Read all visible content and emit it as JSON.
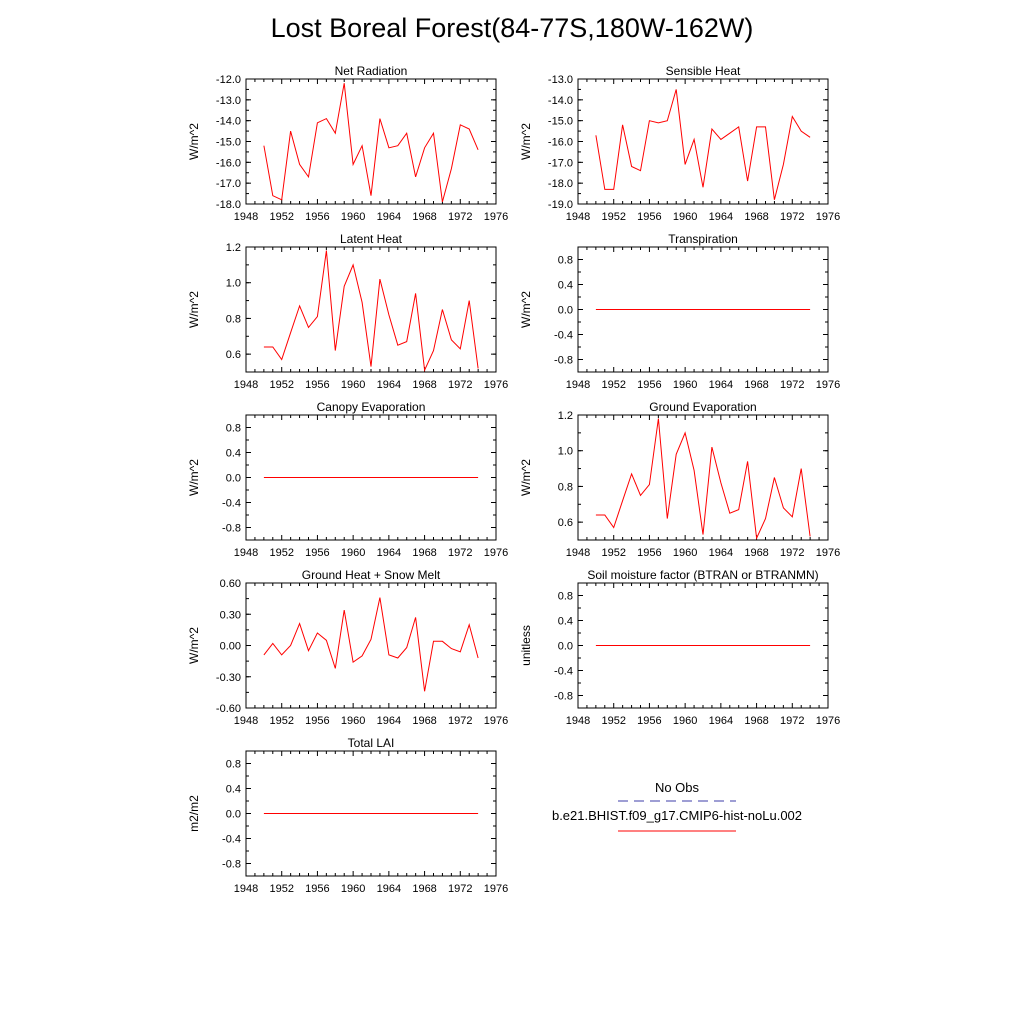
{
  "title": "Lost Boreal Forest(84-77S,180W-162W)",
  "colors": {
    "line": "#ff0000",
    "axis": "#000000",
    "obs": "#3d3da8"
  },
  "x_ticks": [
    "1948",
    "1952",
    "1956",
    "1960",
    "1964",
    "1968",
    "1972",
    "1976"
  ],
  "legend": {
    "obs_label": "No Obs",
    "model_label": "b.e21.BHIST.f09_g17.CMIP6-hist-noLu.002"
  },
  "chart_data": [
    {
      "type": "line",
      "title": "Net Radiation",
      "ylabel": "W/m^2",
      "xlim": [
        1948,
        1976
      ],
      "ylim": [
        -18.0,
        -12.0
      ],
      "yticks": [
        -18.0,
        -17.0,
        -16.0,
        -15.0,
        -14.0,
        -13.0,
        -12.0
      ],
      "ytick_labels": [
        "-18.0",
        "-17.0",
        "-16.0",
        "-15.0",
        "-14.0",
        "-13.0",
        "-12.0"
      ],
      "x": [
        1950,
        1951,
        1952,
        1953,
        1954,
        1955,
        1956,
        1957,
        1958,
        1959,
        1960,
        1961,
        1962,
        1963,
        1964,
        1965,
        1966,
        1967,
        1968,
        1969,
        1970,
        1971,
        1972,
        1973,
        1974
      ],
      "series": [
        {
          "values": [
            -15.2,
            -17.6,
            -17.8,
            -14.5,
            -16.1,
            -16.7,
            -14.1,
            -13.9,
            -14.6,
            -12.2,
            -16.1,
            -15.2,
            -17.6,
            -13.9,
            -15.3,
            -15.2,
            -14.6,
            -16.7,
            -15.3,
            -14.6,
            -17.9,
            -16.3,
            -14.2,
            -14.4,
            -15.4
          ]
        }
      ]
    },
    {
      "type": "line",
      "title": "Sensible Heat",
      "ylabel": "W/m^2",
      "xlim": [
        1948,
        1976
      ],
      "ylim": [
        -19.0,
        -13.0
      ],
      "yticks": [
        -19.0,
        -18.0,
        -17.0,
        -16.0,
        -15.0,
        -14.0,
        -13.0
      ],
      "ytick_labels": [
        "-19.0",
        "-18.0",
        "-17.0",
        "-16.0",
        "-15.0",
        "-14.0",
        "-13.0"
      ],
      "x": [
        1950,
        1951,
        1952,
        1953,
        1954,
        1955,
        1956,
        1957,
        1958,
        1959,
        1960,
        1961,
        1962,
        1963,
        1964,
        1965,
        1966,
        1967,
        1968,
        1969,
        1970,
        1971,
        1972,
        1973,
        1974
      ],
      "series": [
        {
          "values": [
            -15.7,
            -18.3,
            -18.3,
            -15.2,
            -17.2,
            -17.4,
            -15.0,
            -15.1,
            -15.0,
            -13.5,
            -17.1,
            -15.9,
            -18.2,
            -15.4,
            -15.9,
            -15.6,
            -15.3,
            -17.9,
            -15.3,
            -15.3,
            -18.8,
            -17.1,
            -14.8,
            -15.5,
            -15.8
          ]
        }
      ]
    },
    {
      "type": "line",
      "title": "Latent Heat",
      "ylabel": "W/m^2",
      "xlim": [
        1948,
        1976
      ],
      "ylim": [
        0.5,
        1.2
      ],
      "yticks": [
        0.6,
        0.8,
        1.0,
        1.2
      ],
      "ytick_labels": [
        "0.6",
        "0.8",
        "1.0",
        "1.2"
      ],
      "x": [
        1950,
        1951,
        1952,
        1953,
        1954,
        1955,
        1956,
        1957,
        1958,
        1959,
        1960,
        1961,
        1962,
        1963,
        1964,
        1965,
        1966,
        1967,
        1968,
        1969,
        1970,
        1971,
        1972,
        1973,
        1974
      ],
      "series": [
        {
          "values": [
            0.64,
            0.64,
            0.57,
            0.72,
            0.87,
            0.75,
            0.81,
            1.18,
            0.62,
            0.98,
            1.1,
            0.89,
            0.53,
            1.02,
            0.82,
            0.65,
            0.67,
            0.94,
            0.51,
            0.62,
            0.85,
            0.68,
            0.63,
            0.9,
            0.52
          ]
        }
      ]
    },
    {
      "type": "line",
      "title": "Transpiration",
      "ylabel": "W/m^2",
      "xlim": [
        1948,
        1976
      ],
      "ylim": [
        -1.0,
        1.0
      ],
      "yticks": [
        -0.8,
        -0.4,
        0.0,
        0.4,
        0.8
      ],
      "ytick_labels": [
        "-0.8",
        "-0.4",
        "0.0",
        "0.4",
        "0.8"
      ],
      "x": [
        1950,
        1951,
        1952,
        1953,
        1954,
        1955,
        1956,
        1957,
        1958,
        1959,
        1960,
        1961,
        1962,
        1963,
        1964,
        1965,
        1966,
        1967,
        1968,
        1969,
        1970,
        1971,
        1972,
        1973,
        1974
      ],
      "series": [
        {
          "values": [
            0,
            0,
            0,
            0,
            0,
            0,
            0,
            0,
            0,
            0,
            0,
            0,
            0,
            0,
            0,
            0,
            0,
            0,
            0,
            0,
            0,
            0,
            0,
            0,
            0
          ]
        }
      ]
    },
    {
      "type": "line",
      "title": "Canopy Evaporation",
      "ylabel": "W/m^2",
      "xlim": [
        1948,
        1976
      ],
      "ylim": [
        -1.0,
        1.0
      ],
      "yticks": [
        -0.8,
        -0.4,
        0.0,
        0.4,
        0.8
      ],
      "ytick_labels": [
        "-0.8",
        "-0.4",
        "0.0",
        "0.4",
        "0.8"
      ],
      "x": [
        1950,
        1951,
        1952,
        1953,
        1954,
        1955,
        1956,
        1957,
        1958,
        1959,
        1960,
        1961,
        1962,
        1963,
        1964,
        1965,
        1966,
        1967,
        1968,
        1969,
        1970,
        1971,
        1972,
        1973,
        1974
      ],
      "series": [
        {
          "values": [
            0,
            0,
            0,
            0,
            0,
            0,
            0,
            0,
            0,
            0,
            0,
            0,
            0,
            0,
            0,
            0,
            0,
            0,
            0,
            0,
            0,
            0,
            0,
            0,
            0
          ]
        }
      ]
    },
    {
      "type": "line",
      "title": "Ground Evaporation",
      "ylabel": "W/m^2",
      "xlim": [
        1948,
        1976
      ],
      "ylim": [
        0.5,
        1.2
      ],
      "yticks": [
        0.6,
        0.8,
        1.0,
        1.2
      ],
      "ytick_labels": [
        "0.6",
        "0.8",
        "1.0",
        "1.2"
      ],
      "x": [
        1950,
        1951,
        1952,
        1953,
        1954,
        1955,
        1956,
        1957,
        1958,
        1959,
        1960,
        1961,
        1962,
        1963,
        1964,
        1965,
        1966,
        1967,
        1968,
        1969,
        1970,
        1971,
        1972,
        1973,
        1974
      ],
      "series": [
        {
          "values": [
            0.64,
            0.64,
            0.57,
            0.72,
            0.87,
            0.75,
            0.81,
            1.18,
            0.62,
            0.98,
            1.1,
            0.89,
            0.53,
            1.02,
            0.82,
            0.65,
            0.67,
            0.94,
            0.51,
            0.62,
            0.85,
            0.68,
            0.63,
            0.9,
            0.52
          ]
        }
      ]
    },
    {
      "type": "line",
      "title": "Ground Heat + Snow Melt",
      "ylabel": "W/m^2",
      "xlim": [
        1948,
        1976
      ],
      "ylim": [
        -0.6,
        0.6
      ],
      "yticks": [
        -0.6,
        -0.3,
        0.0,
        0.3,
        0.6
      ],
      "ytick_labels": [
        "-0.60",
        "-0.30",
        "0.00",
        "0.30",
        "0.60"
      ],
      "x": [
        1950,
        1951,
        1952,
        1953,
        1954,
        1955,
        1956,
        1957,
        1958,
        1959,
        1960,
        1961,
        1962,
        1963,
        1964,
        1965,
        1966,
        1967,
        1968,
        1969,
        1970,
        1971,
        1972,
        1973,
        1974
      ],
      "series": [
        {
          "values": [
            -0.09,
            0.02,
            -0.09,
            0.0,
            0.21,
            -0.05,
            0.12,
            0.05,
            -0.22,
            0.34,
            -0.16,
            -0.1,
            0.06,
            0.46,
            -0.09,
            -0.12,
            -0.02,
            0.27,
            -0.44,
            0.04,
            0.04,
            -0.03,
            -0.06,
            0.2,
            -0.12
          ]
        }
      ]
    },
    {
      "type": "line",
      "title": "Soil moisture factor (BTRAN or BTRANMN)",
      "ylabel": "unitless",
      "xlim": [
        1948,
        1976
      ],
      "ylim": [
        -1.0,
        1.0
      ],
      "yticks": [
        -0.8,
        -0.4,
        0.0,
        0.4,
        0.8
      ],
      "ytick_labels": [
        "-0.8",
        "-0.4",
        "0.0",
        "0.4",
        "0.8"
      ],
      "x": [
        1950,
        1951,
        1952,
        1953,
        1954,
        1955,
        1956,
        1957,
        1958,
        1959,
        1960,
        1961,
        1962,
        1963,
        1964,
        1965,
        1966,
        1967,
        1968,
        1969,
        1970,
        1971,
        1972,
        1973,
        1974
      ],
      "series": [
        {
          "values": [
            0,
            0,
            0,
            0,
            0,
            0,
            0,
            0,
            0,
            0,
            0,
            0,
            0,
            0,
            0,
            0,
            0,
            0,
            0,
            0,
            0,
            0,
            0,
            0,
            0
          ]
        }
      ]
    },
    {
      "type": "line",
      "title": "Total LAI",
      "ylabel": "m2/m2",
      "xlim": [
        1948,
        1976
      ],
      "ylim": [
        -1.0,
        1.0
      ],
      "yticks": [
        -0.8,
        -0.4,
        0.0,
        0.4,
        0.8
      ],
      "ytick_labels": [
        "-0.8",
        "-0.4",
        "0.0",
        "0.4",
        "0.8"
      ],
      "x": [
        1950,
        1951,
        1952,
        1953,
        1954,
        1955,
        1956,
        1957,
        1958,
        1959,
        1960,
        1961,
        1962,
        1963,
        1964,
        1965,
        1966,
        1967,
        1968,
        1969,
        1970,
        1971,
        1972,
        1973,
        1974
      ],
      "series": [
        {
          "values": [
            0,
            0,
            0,
            0,
            0,
            0,
            0,
            0,
            0,
            0,
            0,
            0,
            0,
            0,
            0,
            0,
            0,
            0,
            0,
            0,
            0,
            0,
            0,
            0,
            0
          ]
        }
      ]
    }
  ]
}
